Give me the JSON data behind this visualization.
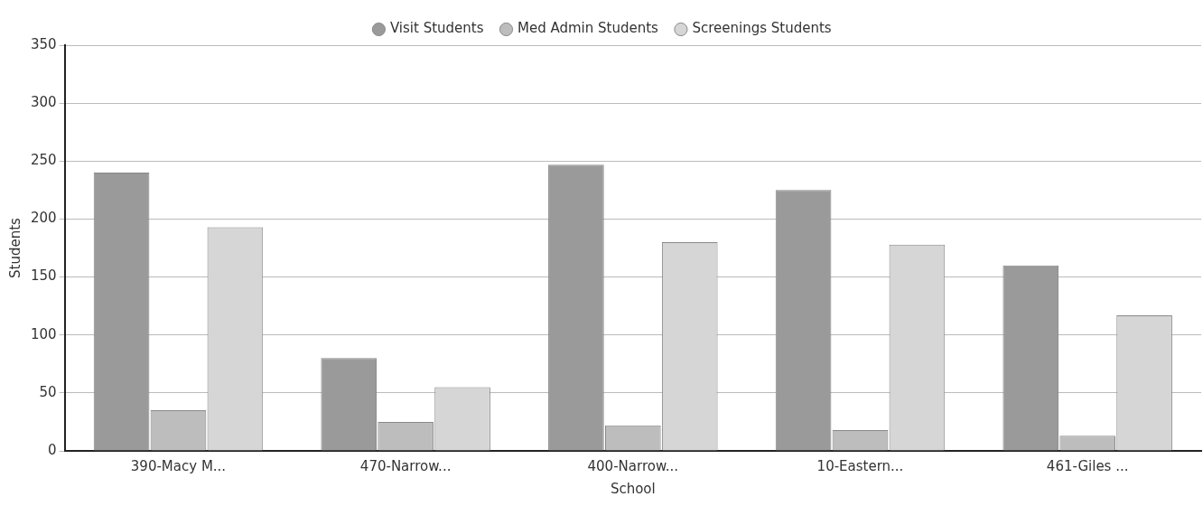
{
  "chart_data": {
    "type": "bar",
    "xlabel": "School",
    "ylabel": "Students",
    "categories": [
      "390-Macy M...",
      "470-Narrow...",
      "400-Narrow...",
      "10-Eastern...",
      "461-Giles ..."
    ],
    "series": [
      {
        "name": "Visit Students",
        "color": "#9a9a9a",
        "values": [
          240,
          80,
          247,
          225,
          160
        ]
      },
      {
        "name": "Med Admin Students",
        "color": "#bdbdbd",
        "values": [
          35,
          25,
          22,
          18,
          13
        ]
      },
      {
        "name": "Screenings Students",
        "color": "#d6d6d6",
        "values": [
          193,
          55,
          180,
          178,
          117
        ]
      }
    ],
    "ylim": [
      0,
      350
    ],
    "yticks": [
      0,
      50,
      100,
      150,
      200,
      250,
      300,
      350
    ],
    "grid": "y",
    "legend": "top"
  }
}
